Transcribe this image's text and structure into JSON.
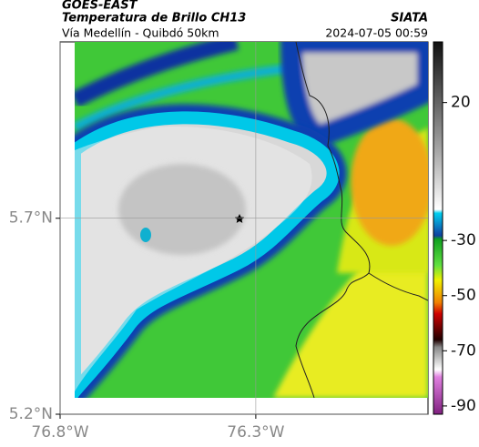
{
  "header": {
    "satellite": "GOES-EAST",
    "title": "Temperatura de Brillo CH13",
    "subtitle": "Vía Medellín - Quibdó 50km",
    "source": "SIATA",
    "datetime": "2024-07-05 00:59"
  },
  "map": {
    "xlim": [
      -76.8,
      -75.86
    ],
    "ylim": [
      5.2,
      6.15
    ],
    "xticks": [
      {
        "value": -76.8,
        "label": "76.8°W"
      },
      {
        "value": -76.3,
        "label": "76.3°W"
      }
    ],
    "yticks": [
      {
        "value": 5.2,
        "label": "5.2°N"
      },
      {
        "value": 5.7,
        "label": "5.7°N"
      }
    ],
    "grid": true
  },
  "colorbar": {
    "lim": [
      -93,
      42
    ],
    "ticks": [
      20,
      -30,
      -50,
      -70,
      -90
    ]
  }
}
